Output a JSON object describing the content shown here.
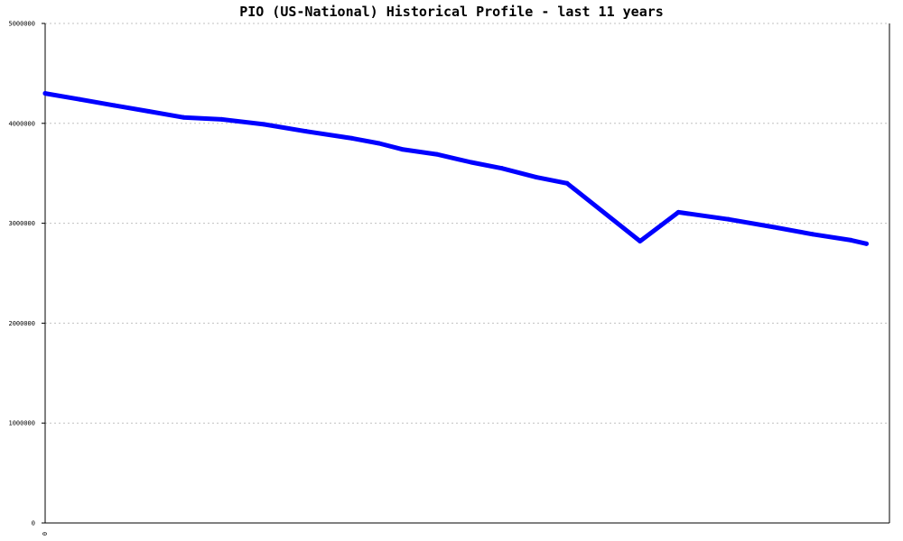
{
  "chart_data": {
    "type": "line",
    "title": "PIO (US-National) Historical Profile - last 11 years",
    "xlabel": "",
    "ylabel": "",
    "x_tick_labels": [
      "0"
    ],
    "y_tick_labels": [
      "0",
      "1000000",
      "2000000",
      "3000000",
      "4000000",
      "5000000"
    ],
    "y_tick_values": [
      0,
      1000000,
      2000000,
      3000000,
      4000000,
      5000000
    ],
    "ylim": [
      0,
      5000000
    ],
    "xlim": [
      0,
      11
    ],
    "grid": true,
    "series": [
      {
        "color": "#0000ff",
        "points": [
          [
            0.0,
            4300000
          ],
          [
            0.45,
            4240000
          ],
          [
            0.9,
            4180000
          ],
          [
            1.35,
            4120000
          ],
          [
            1.8,
            4060000
          ],
          [
            2.3,
            4040000
          ],
          [
            2.85,
            3990000
          ],
          [
            3.4,
            3920000
          ],
          [
            4.0,
            3850000
          ],
          [
            4.35,
            3800000
          ],
          [
            4.65,
            3740000
          ],
          [
            5.1,
            3690000
          ],
          [
            5.55,
            3610000
          ],
          [
            5.95,
            3550000
          ],
          [
            6.4,
            3460000
          ],
          [
            6.8,
            3400000
          ],
          [
            7.75,
            2820000
          ],
          [
            8.25,
            3110000
          ],
          [
            8.9,
            3040000
          ],
          [
            9.5,
            2960000
          ],
          [
            10.0,
            2890000
          ],
          [
            10.5,
            2830000
          ],
          [
            10.7,
            2795000
          ]
        ]
      }
    ]
  }
}
